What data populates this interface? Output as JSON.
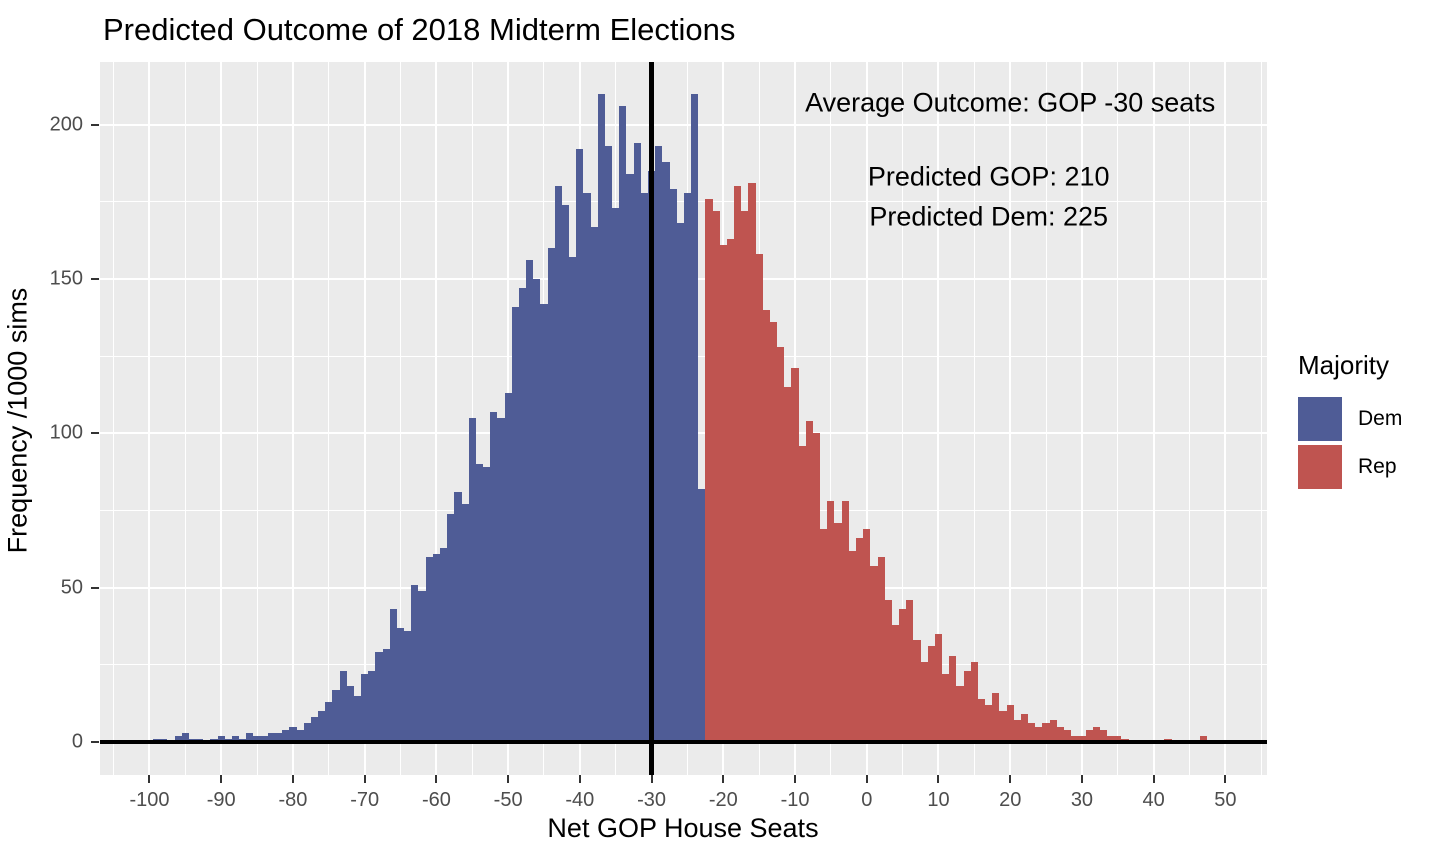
{
  "chart_data": {
    "type": "bar",
    "subtype": "histogram",
    "title": "Predicted Outcome of 2018 Midterm Elections",
    "xlabel": "Net GOP House Seats",
    "ylabel": "Frequency /1000 sims",
    "x_ticks": [
      -100,
      -90,
      -80,
      -70,
      -60,
      -50,
      -40,
      -30,
      -20,
      -10,
      0,
      10,
      20,
      30,
      40,
      50
    ],
    "y_ticks": [
      0,
      50,
      100,
      150,
      200
    ],
    "x_minor_ticks": [
      -105,
      -95,
      -85,
      -75,
      -65,
      -55,
      -45,
      -35,
      -25,
      -15,
      -5,
      5,
      15,
      25,
      35,
      45,
      55
    ],
    "y_minor_ticks": [
      25,
      75,
      125,
      175
    ],
    "xlim": [
      -106.9,
      55.8
    ],
    "ylim": [
      -10.7,
      220.3
    ],
    "bin_start": -99,
    "bin_width": 1,
    "heights": [
      1,
      1,
      0,
      2,
      3,
      1,
      1,
      0,
      1,
      2,
      1,
      2,
      1,
      3,
      2,
      2,
      3,
      3,
      4,
      5,
      4,
      6,
      8,
      10,
      13,
      17,
      23,
      18,
      15,
      22,
      23,
      29,
      30,
      43,
      37,
      36,
      51,
      49,
      60,
      61,
      63,
      74,
      81,
      77,
      105,
      90,
      89,
      107,
      105,
      113,
      141,
      147,
      156,
      150,
      142,
      160,
      180,
      174,
      157,
      192,
      178,
      167,
      210,
      193,
      173,
      206,
      184,
      194,
      178,
      185,
      193,
      188,
      179,
      168,
      178,
      210,
      82,
      176,
      172,
      161,
      163,
      180,
      172,
      181,
      158,
      140,
      136,
      128,
      115,
      121,
      96,
      104,
      100,
      69,
      78,
      71,
      78,
      62,
      66,
      69,
      57,
      60,
      46,
      38,
      43,
      46,
      33,
      26,
      31,
      35,
      22,
      28,
      18,
      23,
      26,
      14,
      12,
      16,
      10,
      12,
      7,
      9,
      6,
      5,
      6,
      7,
      5,
      4,
      2,
      2,
      4,
      5,
      4,
      2,
      2,
      1,
      0,
      0,
      0,
      0,
      0,
      1,
      0,
      0,
      0,
      0,
      2,
      0
    ],
    "dem_max_bin": -23,
    "vline_x": -30,
    "hline_y": 0,
    "annotations": [
      {
        "text": "Average Outcome: GOP -30 seats",
        "x": 20,
        "y": 207
      },
      {
        "text": "Predicted GOP: 210",
        "x": 17,
        "y": 183
      },
      {
        "text": "Predicted Dem: 225",
        "x": 17,
        "y": 170
      }
    ],
    "legend": {
      "title": "Majority",
      "position": "right",
      "items": [
        {
          "label": "Dem",
          "color": "#4F5C96"
        },
        {
          "label": "Rep",
          "color": "#BF5450"
        }
      ]
    },
    "colors": {
      "dem": "#4F5C96",
      "rep": "#BF5450",
      "panel_background": "#EBEBEB",
      "grid": "#FFFFFF",
      "reference_line": "#000000",
      "tick_text": "#4D4D4D",
      "text": "#000000"
    },
    "grid": "on"
  }
}
